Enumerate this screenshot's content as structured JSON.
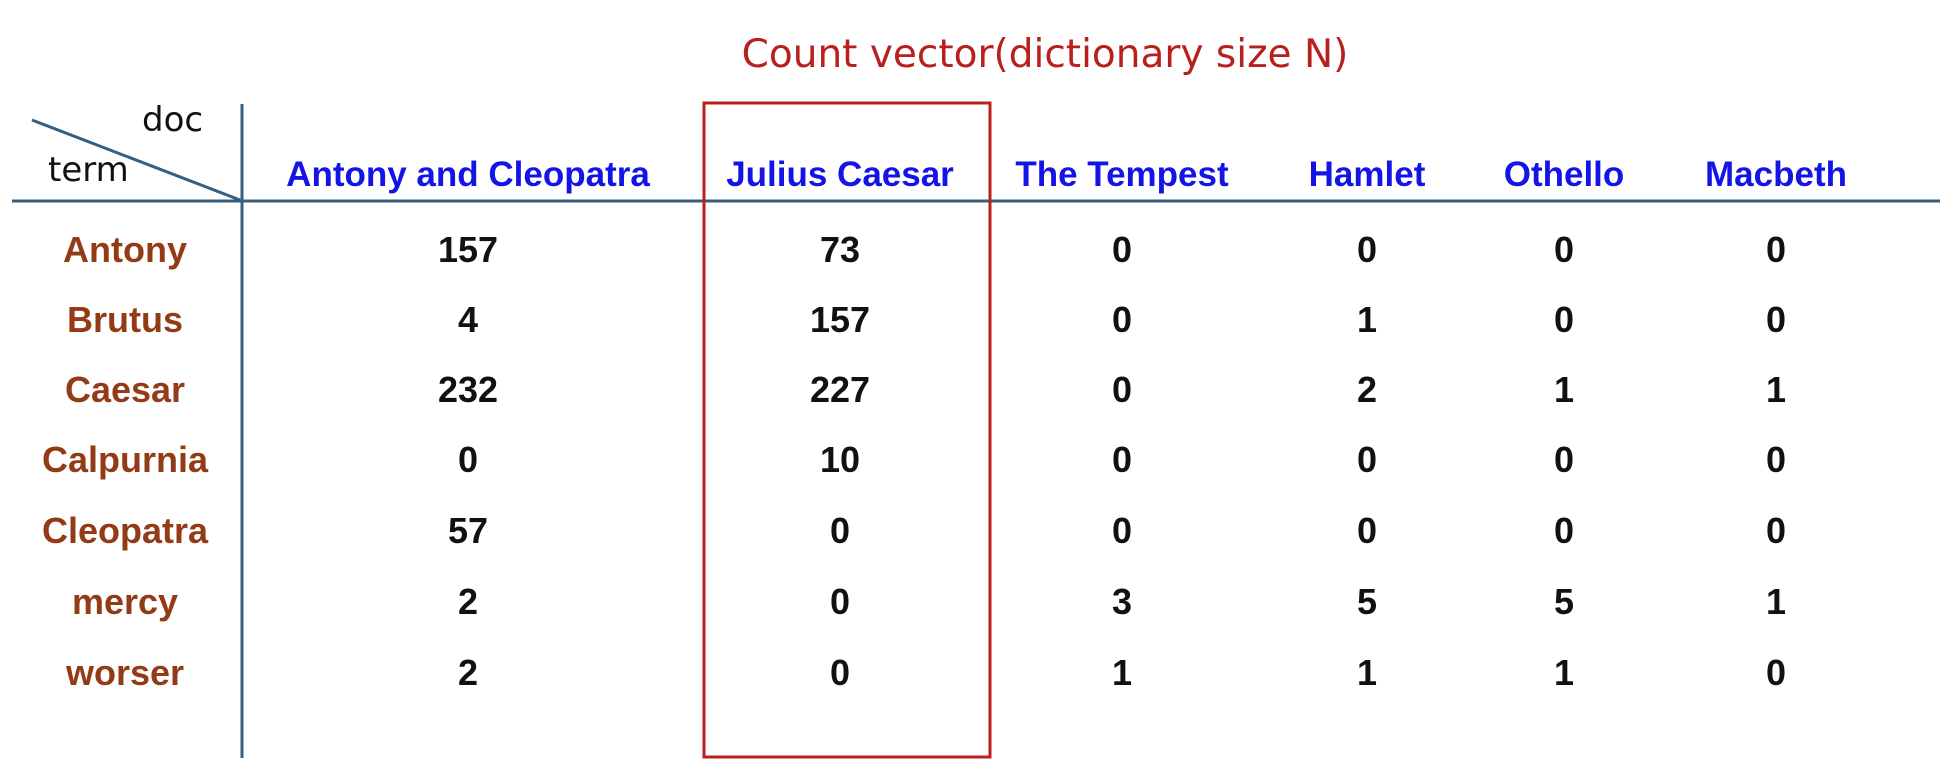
{
  "annotation": "Count vector(dictionary size N)",
  "corner": {
    "doc_label": "doc",
    "term_label": "term"
  },
  "columns": [
    "Antony and Cleopatra",
    "Julius Caesar",
    "The Tempest",
    "Hamlet",
    "Othello",
    "Macbeth"
  ],
  "rows": [
    {
      "term": "Antony",
      "counts": [
        "157",
        "73",
        "0",
        "0",
        "0",
        "0"
      ]
    },
    {
      "term": "Brutus",
      "counts": [
        "4",
        "157",
        "0",
        "1",
        "0",
        "0"
      ]
    },
    {
      "term": "Caesar",
      "counts": [
        "232",
        "227",
        "0",
        "2",
        "1",
        "1"
      ]
    },
    {
      "term": "Calpurnia",
      "counts": [
        "0",
        "10",
        "0",
        "0",
        "0",
        "0"
      ]
    },
    {
      "term": "Cleopatra",
      "counts": [
        "57",
        "0",
        "0",
        "0",
        "0",
        "0"
      ]
    },
    {
      "term": "mercy",
      "counts": [
        "2",
        "0",
        "3",
        "5",
        "5",
        "1"
      ]
    },
    {
      "term": "worser",
      "counts": [
        "2",
        "0",
        "1",
        "1",
        "1",
        "0"
      ]
    }
  ],
  "colors": {
    "header_text": "#1414e6",
    "term_text": "#933b17",
    "annotation_text": "#b8201e",
    "highlight_box": "#b8201e",
    "rule_lines": "#355f7f"
  }
}
